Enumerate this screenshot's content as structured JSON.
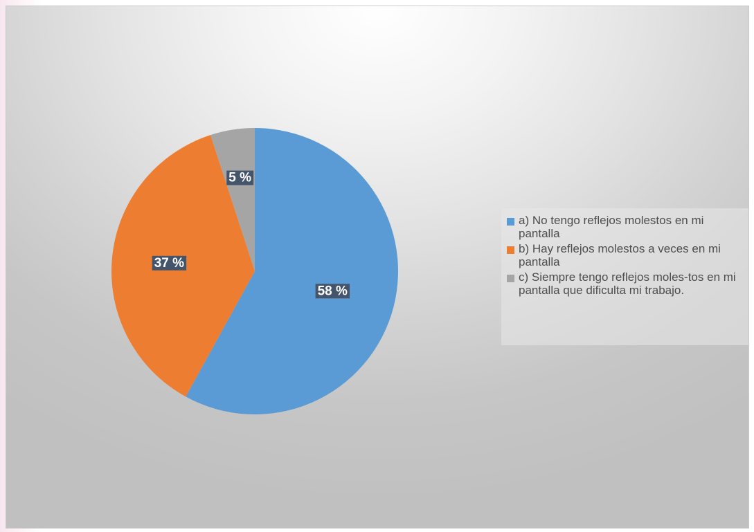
{
  "chart_data": {
    "type": "pie",
    "title": "",
    "legend_position": "right",
    "slices": [
      {
        "label": "a) No tengo reflejos molestos en mi pantalla",
        "value": 58,
        "display": "58 %",
        "color": "#5b9bd5"
      },
      {
        "label": "b) Hay reflejos molestos a veces en mi pantalla",
        "value": 37,
        "display": "37 %",
        "color": "#ed7d31"
      },
      {
        "label": "c) Siempre tengo reflejos moles-tos en mi pantalla que dificulta mi trabajo.",
        "value": 5,
        "display": "5 %",
        "color": "#a5a5a5"
      }
    ]
  }
}
